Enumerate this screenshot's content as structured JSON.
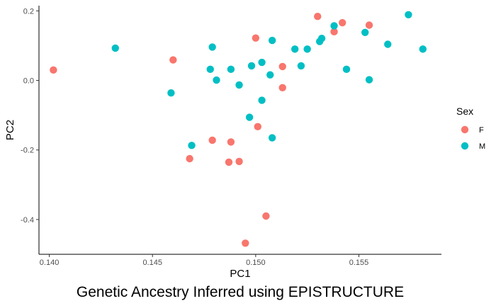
{
  "chart_data": {
    "type": "scatter",
    "xlabel": "PC1",
    "ylabel": "PC2",
    "caption": "Genetic Ancestry Inferred using EPISTRUCTURE",
    "xlim": [
      0.1395,
      0.159
    ],
    "ylim": [
      -0.5,
      0.215
    ],
    "x_ticks": [
      0.14,
      0.145,
      0.15,
      0.155
    ],
    "x_tick_labels": [
      "0.140",
      "0.145",
      "0.150",
      "0.155"
    ],
    "y_ticks": [
      -0.4,
      -0.2,
      0.0,
      0.2
    ],
    "y_tick_labels": [
      "-0.4",
      "-0.2",
      "0.0",
      "0.2"
    ],
    "grid": false,
    "legend": {
      "title": "Sex",
      "position": "right",
      "entries": [
        {
          "label": "F",
          "color": "#F8766D"
        },
        {
          "label": "M",
          "color": "#00BFC4"
        }
      ]
    },
    "series": [
      {
        "name": "F",
        "color": "#F8766D",
        "points": [
          [
            0.1402,
            0.03
          ],
          [
            0.146,
            0.059
          ],
          [
            0.15,
            0.122
          ],
          [
            0.1513,
            0.04
          ],
          [
            0.1513,
            -0.021
          ],
          [
            0.153,
            0.184
          ],
          [
            0.1538,
            0.14
          ],
          [
            0.1542,
            0.166
          ],
          [
            0.1555,
            0.159
          ],
          [
            0.1479,
            -0.172
          ],
          [
            0.1488,
            -0.177
          ],
          [
            0.1501,
            -0.133
          ],
          [
            0.1468,
            -0.225
          ],
          [
            0.1487,
            -0.235
          ],
          [
            0.1492,
            -0.233
          ],
          [
            0.1505,
            -0.39
          ],
          [
            0.1495,
            -0.468
          ]
        ]
      },
      {
        "name": "M",
        "color": "#00BFC4",
        "points": [
          [
            0.1432,
            0.093
          ],
          [
            0.1459,
            -0.036
          ],
          [
            0.1478,
            0.032
          ],
          [
            0.1479,
            0.096
          ],
          [
            0.1481,
            0.001
          ],
          [
            0.1488,
            0.032
          ],
          [
            0.1492,
            -0.013
          ],
          [
            0.1498,
            0.042
          ],
          [
            0.1503,
            0.052
          ],
          [
            0.1507,
            0.016
          ],
          [
            0.1508,
            0.115
          ],
          [
            0.1503,
            -0.057
          ],
          [
            0.1497,
            -0.106
          ],
          [
            0.1508,
            -0.165
          ],
          [
            0.1469,
            -0.187
          ],
          [
            0.1519,
            0.09
          ],
          [
            0.1522,
            0.042
          ],
          [
            0.1525,
            0.09
          ],
          [
            0.1531,
            0.112
          ],
          [
            0.1532,
            0.121
          ],
          [
            0.1538,
            0.157
          ],
          [
            0.1544,
            0.032
          ],
          [
            0.1553,
            0.138
          ],
          [
            0.1555,
            0.002
          ],
          [
            0.1564,
            0.104
          ],
          [
            0.1574,
            0.189
          ],
          [
            0.1581,
            0.09
          ]
        ]
      }
    ]
  }
}
